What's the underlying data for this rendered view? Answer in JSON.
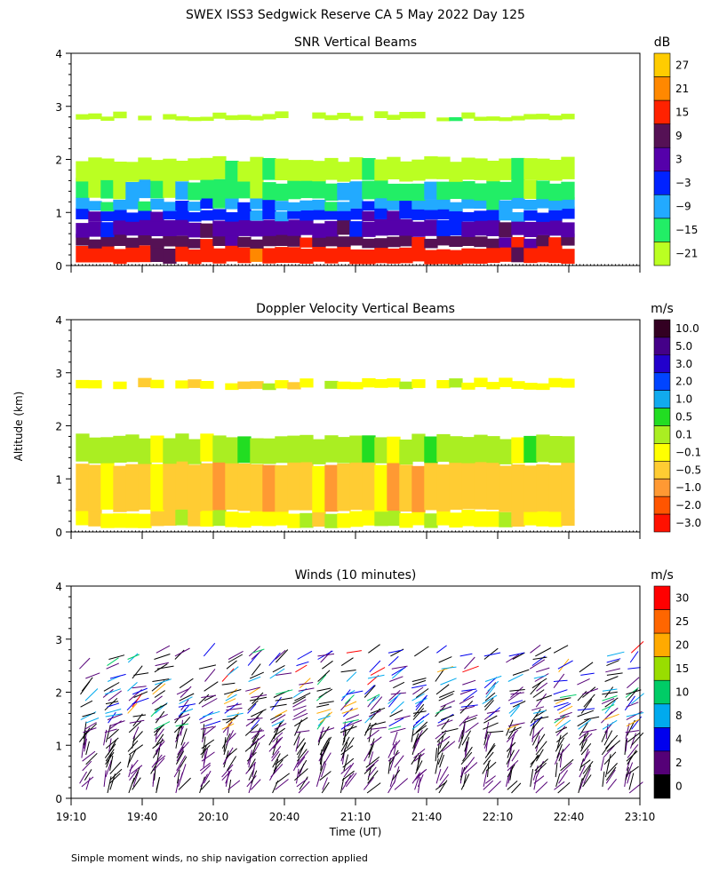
{
  "figure": {
    "title": "SWEX ISS3 Sedgwick Reserve CA   5 May 2022 Day 125",
    "ylabel": "Altitude (km)",
    "xlabel": "Time (UT)",
    "footnote": "Simple moment winds, no ship navigation correction applied"
  },
  "chart_data": [
    {
      "type": "heatmap",
      "title": "SNR Vertical Beams",
      "xlabel": "Time (UT)",
      "ylabel": "Altitude (km)",
      "x_ticks": [
        "19:10",
        "19:40",
        "20:10",
        "20:40",
        "21:10",
        "21:40",
        "22:10",
        "22:40",
        "23:10"
      ],
      "xlim_minutes_after_1910": [
        0,
        240
      ],
      "y_ticks": [
        0,
        1,
        2,
        3,
        4
      ],
      "ylim_km": [
        0,
        4
      ],
      "colorbar": {
        "unit": "dB",
        "labels": [
          "27",
          "21",
          "15",
          "9",
          "3",
          "−3",
          "−9",
          "−15",
          "−21"
        ],
        "colors": [
          "#ffcc00",
          "#ff8800",
          "#ff2200",
          "#551155",
          "#5500aa",
          "#0022ff",
          "#22aaff",
          "#22ee66",
          "#bbff22"
        ]
      },
      "layers": [
        {
          "alt_km": [
            0.05,
            0.35
          ],
          "level": "15"
        },
        {
          "alt_km": [
            0.35,
            0.55
          ],
          "level": "9"
        },
        {
          "alt_km": [
            0.55,
            0.85
          ],
          "level": "3"
        },
        {
          "alt_km": [
            0.85,
            1.05
          ],
          "level": "−3"
        },
        {
          "alt_km": [
            1.05,
            1.25
          ],
          "level": "−9"
        },
        {
          "alt_km": [
            1.25,
            1.6
          ],
          "level": "−15"
        },
        {
          "alt_km": [
            1.6,
            2.0
          ],
          "level": "−21"
        },
        {
          "alt_km": [
            2.75,
            2.85
          ],
          "level": "−21"
        }
      ]
    },
    {
      "type": "heatmap",
      "title": "Doppler Velocity Vertical Beams",
      "xlabel": "Time (UT)",
      "ylabel": "Altitude (km)",
      "x_ticks": [
        "19:10",
        "19:40",
        "20:10",
        "20:40",
        "21:10",
        "21:40",
        "22:10",
        "22:40",
        "23:10"
      ],
      "xlim_minutes_after_1910": [
        0,
        240
      ],
      "y_ticks": [
        0,
        1,
        2,
        3,
        4
      ],
      "ylim_km": [
        0,
        4
      ],
      "colorbar": {
        "unit": "m/s",
        "labels": [
          "10.0",
          "5.0",
          "3.0",
          "2.0",
          "1.0",
          "0.5",
          "0.1",
          "−0.1",
          "−0.5",
          "−1.0",
          "−2.0",
          "−3.0"
        ],
        "colors": [
          "#330022",
          "#440088",
          "#2200cc",
          "#0044ff",
          "#11aaee",
          "#22dd22",
          "#aaee22",
          "#ffff00",
          "#ffcc33",
          "#ff9933",
          "#ff5500",
          "#ff1100"
        ]
      },
      "layers": [
        {
          "alt_km": [
            0.1,
            0.4
          ],
          "level": "−0.1"
        },
        {
          "alt_km": [
            0.4,
            1.3
          ],
          "level": "−0.5"
        },
        {
          "alt_km": [
            1.3,
            1.8
          ],
          "level": "0.1"
        },
        {
          "alt_km": [
            2.7,
            2.85
          ],
          "level": "−0.1"
        }
      ]
    },
    {
      "type": "scatter",
      "title": "Winds (10 minutes)",
      "xlabel": "Time (UT)",
      "ylabel": "Altitude (km)",
      "x_ticks": [
        "19:10",
        "19:40",
        "20:10",
        "20:40",
        "21:10",
        "21:40",
        "22:10",
        "22:40",
        "23:10"
      ],
      "xlim_minutes_after_1910": [
        0,
        240
      ],
      "y_ticks": [
        0,
        1,
        2,
        3,
        4
      ],
      "ylim_km": [
        0,
        4
      ],
      "colorbar": {
        "unit": "m/s",
        "labels": [
          "30",
          "25",
          "20",
          "15",
          "10",
          "8",
          "4",
          "2",
          "0"
        ],
        "colors": [
          "#ff0000",
          "#ff6600",
          "#ffaa00",
          "#99dd00",
          "#00cc66",
          "#00aaee",
          "#0000ee",
          "#550077",
          "#000000"
        ]
      },
      "barb_columns_minutes": [
        5,
        15,
        25,
        35,
        45,
        55,
        65,
        75,
        85,
        95,
        105,
        115,
        125,
        135,
        145,
        155,
        165,
        175,
        185,
        195,
        205,
        215,
        225,
        235
      ],
      "barb_alt_range_km": [
        0.1,
        2.8
      ]
    }
  ]
}
